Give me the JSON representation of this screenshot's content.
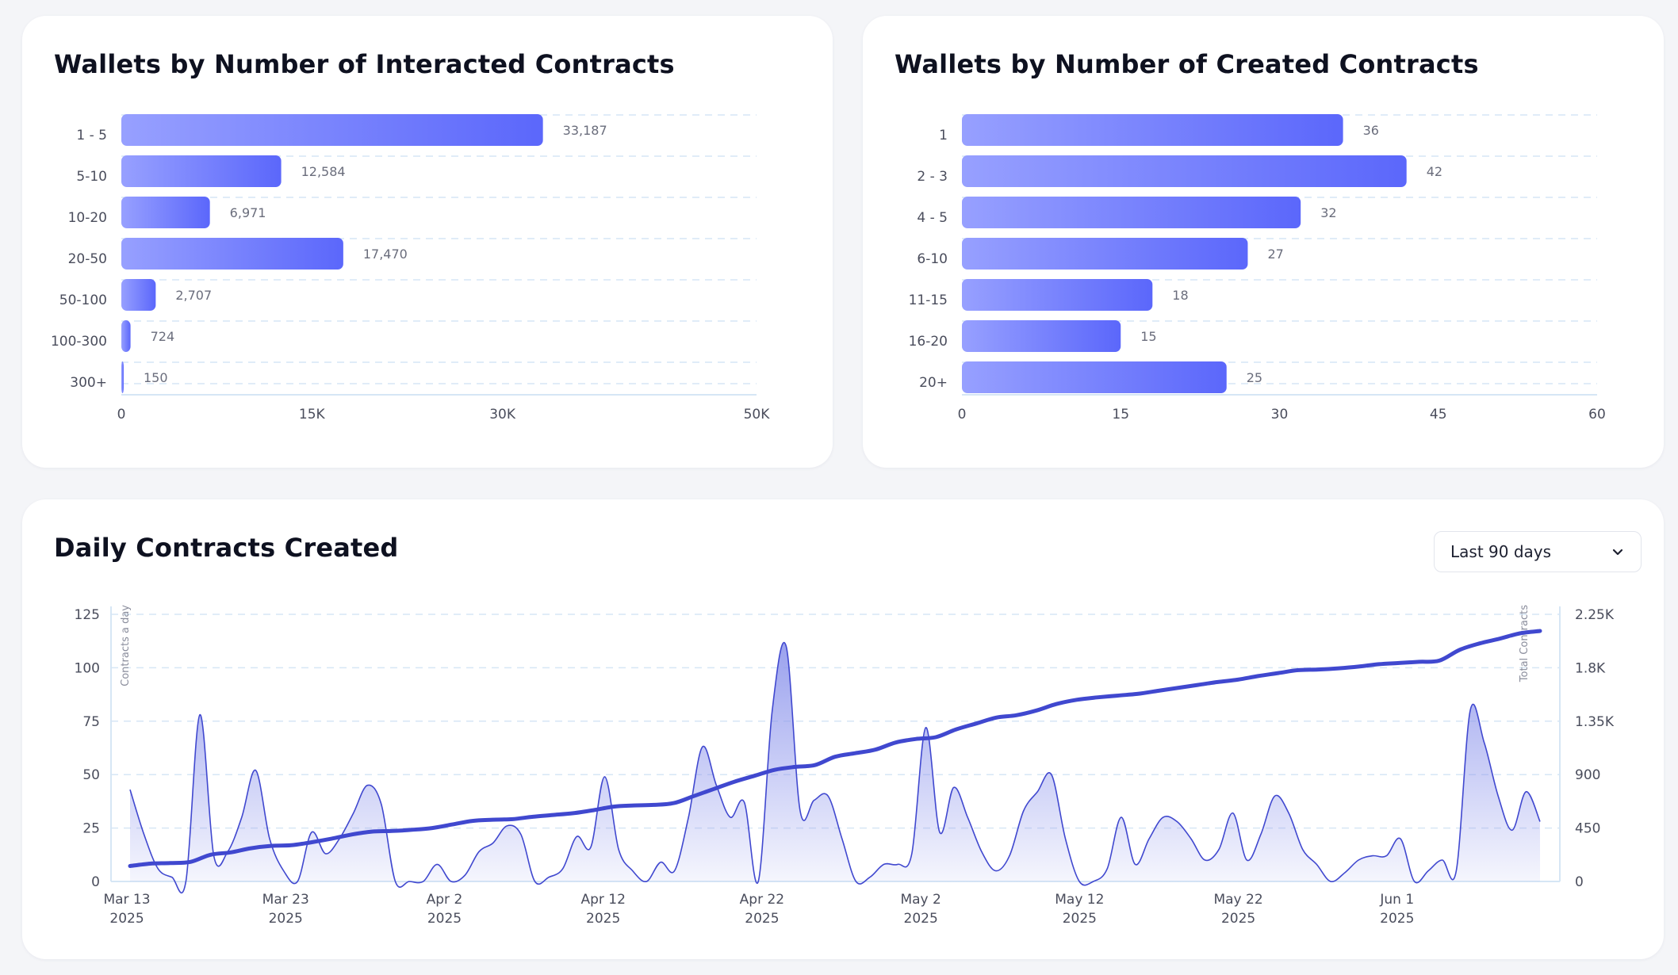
{
  "colors": {
    "bar_light": "#97a0ff",
    "bar_dark": "#5b67fb",
    "line": "#4048cf",
    "area_top": "#8f97ec",
    "grid": "#d6e6f5",
    "tick": "#4a4d5c"
  },
  "charts": {
    "interacted": {
      "title": "Wallets by Number of Interacted Contracts"
    },
    "created": {
      "title": "Wallets by Number of Created Contracts"
    },
    "daily": {
      "title": "Daily Contracts Created",
      "range_select": {
        "value": "Last 90 days",
        "icon": "chevron-down-icon"
      }
    }
  },
  "chart_data": [
    {
      "type": "bar",
      "orientation": "horizontal",
      "title": "Wallets by Number of Interacted Contracts",
      "categories": [
        "1 - 5",
        "5-10",
        "10-20",
        "20-50",
        "50-100",
        "100-300",
        "300+"
      ],
      "values": [
        33187,
        12584,
        6971,
        17470,
        2707,
        724,
        150
      ],
      "value_labels": [
        "33,187",
        "12,584",
        "6,971",
        "17,470",
        "2,707",
        "724",
        "150"
      ],
      "xlim": [
        0,
        50000
      ],
      "xticks": [
        0,
        15000,
        30000,
        50000
      ],
      "xtick_labels": [
        "0",
        "15K",
        "30K",
        "50K"
      ],
      "grid": true
    },
    {
      "type": "bar",
      "orientation": "horizontal",
      "title": "Wallets by Number of Created Contracts",
      "categories": [
        "1",
        "2 - 3",
        "4 - 5",
        "6-10",
        "11-15",
        "16-20",
        "20+"
      ],
      "values": [
        36,
        42,
        32,
        27,
        18,
        15,
        25
      ],
      "value_labels": [
        "36",
        "42",
        "32",
        "27",
        "18",
        "15",
        "25"
      ],
      "xlim": [
        0,
        60
      ],
      "xticks": [
        0,
        15,
        30,
        45,
        60
      ],
      "xtick_labels": [
        "0",
        "15",
        "30",
        "45",
        "60"
      ],
      "grid": true
    },
    {
      "type": "line",
      "title": "Daily Contracts Created",
      "x_start": "2025-03-12",
      "x_end": "2025-06-10",
      "x_tick_dates": [
        "2025-03-13",
        "2025-03-23",
        "2025-04-02",
        "2025-04-12",
        "2025-04-22",
        "2025-05-02",
        "2025-05-12",
        "2025-05-22",
        "2025-06-01"
      ],
      "x_tick_labels": [
        [
          "Mar 13",
          "2025"
        ],
        [
          "Mar 23",
          "2025"
        ],
        [
          "Apr 2",
          "2025"
        ],
        [
          "Apr 12",
          "2025"
        ],
        [
          "Apr 22",
          "2025"
        ],
        [
          "May 2",
          "2025"
        ],
        [
          "May 12",
          "2025"
        ],
        [
          "May 22",
          "2025"
        ],
        [
          "Jun 1",
          "2025"
        ]
      ],
      "y_left": {
        "label": "Contracts a day",
        "lim": [
          0,
          125
        ],
        "ticks": [
          0,
          25,
          50,
          75,
          100,
          125
        ],
        "tick_labels": [
          "0",
          "25",
          "50",
          "75",
          "100",
          "125"
        ]
      },
      "y_right": {
        "label": "Total Contracts",
        "lim": [
          0,
          2250
        ],
        "ticks": [
          0,
          450,
          900,
          1350,
          1800,
          2250
        ],
        "tick_labels": [
          "0",
          "450",
          "900",
          "1.35K",
          "1.8K",
          "2.25K"
        ]
      },
      "grid": true,
      "series": [
        {
          "type": "area",
          "axis": "left",
          "values": [
            43,
            22,
            6,
            2,
            0,
            78,
            12,
            14,
            30,
            52,
            20,
            5,
            0,
            23,
            13,
            20,
            32,
            45,
            36,
            0,
            0,
            0,
            8,
            0,
            3,
            14,
            18,
            26,
            22,
            0,
            2,
            6,
            21,
            16,
            49,
            15,
            5,
            0,
            9,
            5,
            30,
            63,
            45,
            30,
            37,
            0,
            80,
            110,
            33,
            38,
            40,
            20,
            0,
            2,
            8,
            8,
            13,
            72,
            23,
            44,
            30,
            14,
            5,
            12,
            33,
            42,
            50,
            20,
            0,
            0,
            6,
            30,
            8,
            20,
            30,
            28,
            20,
            10,
            15,
            32,
            10,
            22,
            40,
            32,
            15,
            8,
            0,
            4,
            10,
            12,
            12,
            20,
            0,
            5,
            10,
            5,
            80,
            65,
            40,
            24,
            42,
            28
          ]
        },
        {
          "type": "line",
          "axis": "right",
          "values": [
            130,
            150,
            155,
            165,
            225,
            245,
            280,
            300,
            305,
            330,
            360,
            395,
            420,
            425,
            435,
            450,
            480,
            510,
            520,
            525,
            545,
            560,
            575,
            600,
            630,
            640,
            645,
            660,
            720,
            780,
            840,
            890,
            940,
            965,
            980,
            1050,
            1080,
            1110,
            1170,
            1200,
            1215,
            1280,
            1330,
            1380,
            1400,
            1440,
            1495,
            1530,
            1550,
            1565,
            1580,
            1605,
            1630,
            1655,
            1680,
            1700,
            1730,
            1755,
            1780,
            1785,
            1795,
            1810,
            1830,
            1840,
            1850,
            1860,
            1950,
            2005,
            2045,
            2090,
            2110
          ]
        }
      ]
    }
  ]
}
